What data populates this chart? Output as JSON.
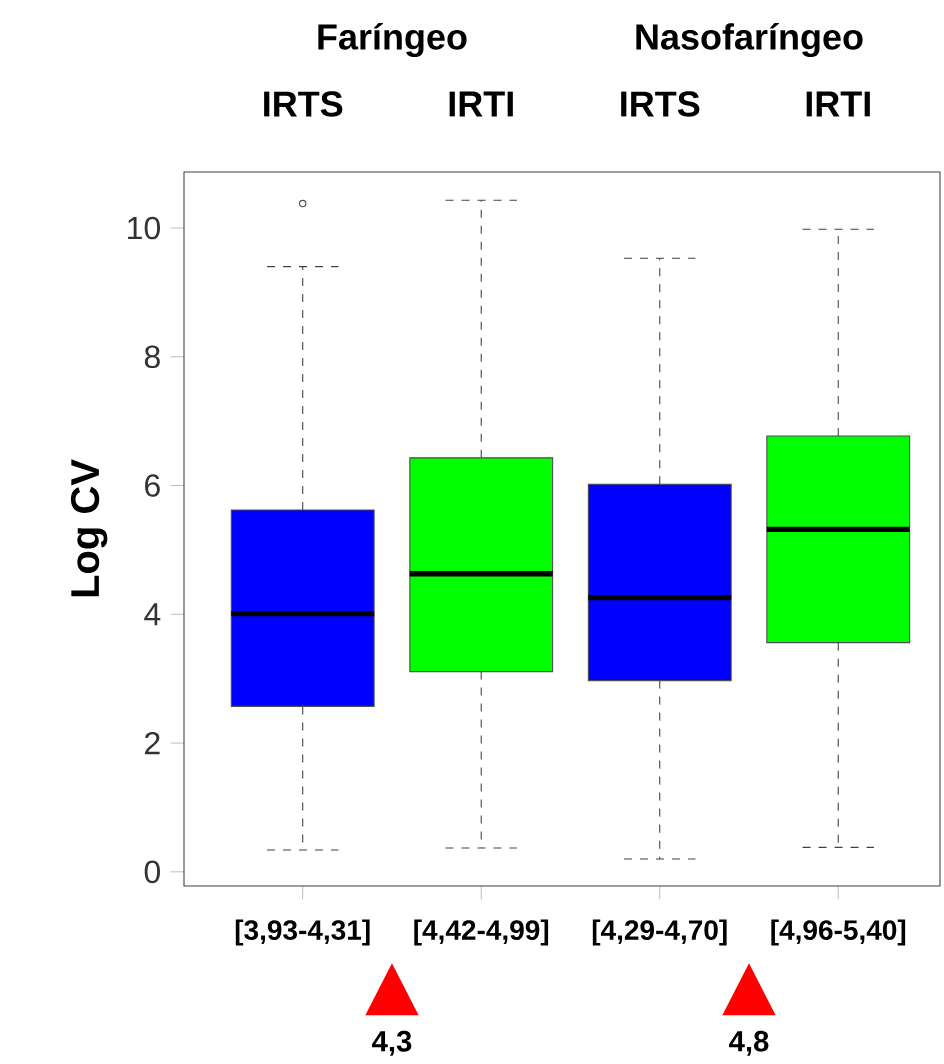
{
  "chart_data": {
    "type": "box",
    "ylabel": "Log CV",
    "categories": [
      "[3,93-4,31]",
      "[4,42-4,99]",
      "[4,29-4,70]",
      "[4,96-5,40]"
    ],
    "boxes": [
      {
        "low": 0.34,
        "q1": 2.57,
        "median": 4.01,
        "q3": 5.62,
        "high": 9.4,
        "outliers": [
          10.38
        ]
      },
      {
        "low": 0.37,
        "q1": 3.11,
        "median": 4.63,
        "q3": 6.43,
        "high": 10.43
      },
      {
        "low": 0.2,
        "q1": 2.97,
        "median": 4.26,
        "q3": 6.02,
        "high": 9.53
      },
      {
        "low": 0.38,
        "q1": 3.56,
        "median": 5.32,
        "q3": 6.77,
        "high": 9.98
      }
    ],
    "colors": [
      "#0000ff",
      "#00ff00",
      "#0000ff",
      "#00ff00"
    ],
    "ylim": [
      -0.22,
      10.87
    ],
    "yticks": [
      0,
      2,
      4,
      6,
      8,
      10
    ],
    "grid": false,
    "annotations": [
      "Faríngeo",
      "Nasofaríngeo",
      "IRTS",
      "IRTI",
      "IRTS",
      "IRTI",
      "4,3",
      "4,8"
    ]
  }
}
